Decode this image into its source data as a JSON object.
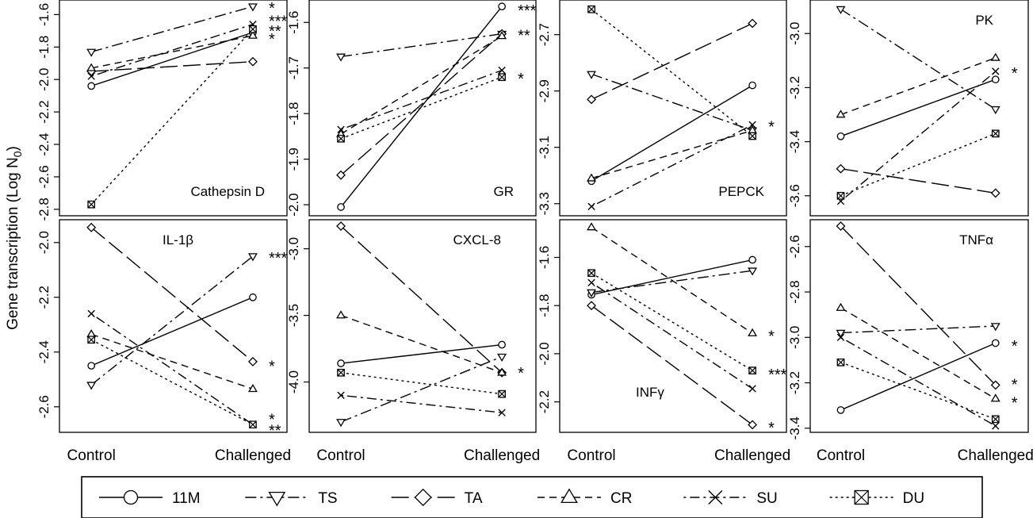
{
  "figure": {
    "ylabel": "Gene transcription (Log N",
    "ylabel_sub": "0",
    "ylabel_close": ")"
  },
  "legend": [
    {
      "name": "11M",
      "marker": "circle",
      "dash": "solid"
    },
    {
      "name": "TS",
      "marker": "triangle-down",
      "dash": "dash-dot"
    },
    {
      "name": "TA",
      "marker": "diamond",
      "dash": "long-dash"
    },
    {
      "name": "CR",
      "marker": "triangle-up",
      "dash": "dash"
    },
    {
      "name": "SU",
      "marker": "x",
      "dash": "dot-dash"
    },
    {
      "name": "DU",
      "marker": "boxed-x",
      "dash": "dot"
    }
  ],
  "chart_data": [
    {
      "type": "line",
      "title": "Cathepsin D",
      "title_pos": "bottom-right",
      "categories": [
        "Control",
        "Challenged"
      ],
      "ylim": [
        -2.8,
        -1.55
      ],
      "yticks": [
        "-1.6",
        "-1.8",
        "-2.0",
        "-2.2",
        "-2.4",
        "-2.6",
        "-2.8"
      ],
      "ytick_values": [
        -1.6,
        -1.8,
        -2.0,
        -2.2,
        -2.4,
        -2.6,
        -2.8
      ],
      "series": [
        {
          "name": "11M",
          "values": [
            -2.04,
            -1.71
          ]
        },
        {
          "name": "TS",
          "values": [
            -1.83,
            -1.55
          ]
        },
        {
          "name": "TA",
          "values": [
            -1.95,
            -1.89
          ]
        },
        {
          "name": "CR",
          "values": [
            -1.93,
            -1.73
          ]
        },
        {
          "name": "SU",
          "values": [
            -1.98,
            -1.66
          ]
        },
        {
          "name": "DU",
          "values": [
            -2.77,
            -1.69
          ]
        }
      ],
      "significance": [
        {
          "label": "*",
          "y": -1.55
        },
        {
          "label": "***",
          "y": -1.63
        },
        {
          "label": "**",
          "y": -1.69
        },
        {
          "label": "*",
          "y": -1.74
        }
      ]
    },
    {
      "type": "line",
      "title": "GR",
      "title_pos": "bottom-right",
      "categories": [
        "Control",
        "Challenged"
      ],
      "ylim": [
        -2.01,
        -1.565
      ],
      "yticks": [
        "-1.6",
        "-1.7",
        "-1.8",
        "-1.9",
        "-2.0"
      ],
      "ytick_values": [
        -1.6,
        -1.7,
        -1.8,
        -1.9,
        -2.0
      ],
      "series": [
        {
          "name": "11M",
          "values": [
            -2.005,
            -1.565
          ]
        },
        {
          "name": "TS",
          "values": [
            -1.675,
            -1.625
          ]
        },
        {
          "name": "TA",
          "values": [
            -1.935,
            -1.625
          ]
        },
        {
          "name": "CR",
          "values": [
            -1.845,
            -1.63
          ]
        },
        {
          "name": "SU",
          "values": [
            -1.835,
            -1.705
          ]
        },
        {
          "name": "DU",
          "values": [
            -1.855,
            -1.72
          ]
        }
      ],
      "significance": [
        {
          "label": "***",
          "y": -1.57
        },
        {
          "label": "**",
          "y": -1.625
        },
        {
          "label": "*",
          "y": -1.72
        }
      ]
    },
    {
      "type": "line",
      "title": "PEPCK",
      "title_pos": "bottom-right",
      "categories": [
        "Control",
        "Challenged"
      ],
      "ylim": [
        -3.32,
        -2.6
      ],
      "yticks": [
        "-2.7",
        "-2.9",
        "-3.1",
        "-3.3"
      ],
      "ytick_values": [
        -2.7,
        -2.9,
        -3.1,
        -3.3
      ],
      "series": [
        {
          "name": "11M",
          "values": [
            -3.22,
            -2.88
          ]
        },
        {
          "name": "TS",
          "values": [
            -2.84,
            -3.04
          ]
        },
        {
          "name": "TA",
          "values": [
            -2.93,
            -2.66
          ]
        },
        {
          "name": "CR",
          "values": [
            -3.21,
            -3.04
          ]
        },
        {
          "name": "SU",
          "values": [
            -3.31,
            -3.02
          ]
        },
        {
          "name": "DU",
          "values": [
            -2.61,
            -3.06
          ]
        }
      ],
      "significance": [
        {
          "label": "*",
          "y": -3.02
        }
      ]
    },
    {
      "type": "line",
      "title": "PK",
      "title_pos": "top-right",
      "categories": [
        "Control",
        "Challenged"
      ],
      "ylim": [
        -3.65,
        -2.9
      ],
      "yticks": [
        "-3.0",
        "-3.2",
        "-3.4",
        "-3.6"
      ],
      "ytick_values": [
        -3.0,
        -3.2,
        -3.4,
        -3.6
      ],
      "series": [
        {
          "name": "11M",
          "values": [
            -3.38,
            -3.17
          ]
        },
        {
          "name": "TS",
          "values": [
            -2.91,
            -3.28
          ]
        },
        {
          "name": "TA",
          "values": [
            -3.5,
            -3.59
          ]
        },
        {
          "name": "CR",
          "values": [
            -3.3,
            -3.09
          ]
        },
        {
          "name": "SU",
          "values": [
            -3.62,
            -3.14
          ]
        },
        {
          "name": "DU",
          "values": [
            -3.6,
            -3.37
          ]
        }
      ],
      "significance": [
        {
          "label": "*",
          "y": -3.14
        }
      ]
    },
    {
      "type": "line",
      "title": "IL-1β",
      "title_pos": "top-left",
      "categories": [
        "Control",
        "Challenged"
      ],
      "ylim": [
        -2.67,
        -1.94
      ],
      "yticks": [
        "-2.0",
        "-2.2",
        "-2.4",
        "-2.6"
      ],
      "ytick_values": [
        -2.0,
        -2.2,
        -2.4,
        -2.6
      ],
      "series": [
        {
          "name": "11M",
          "values": [
            -2.45,
            -2.2
          ]
        },
        {
          "name": "TS",
          "values": [
            -2.52,
            -2.05
          ]
        },
        {
          "name": "TA",
          "values": [
            -1.945,
            -2.435
          ]
        },
        {
          "name": "CR",
          "values": [
            -2.335,
            -2.535
          ]
        },
        {
          "name": "SU",
          "values": [
            -2.26,
            -2.665
          ]
        },
        {
          "name": "DU",
          "values": [
            -2.355,
            -2.665
          ]
        }
      ],
      "significance": [
        {
          "label": "***",
          "y": -2.05
        },
        {
          "label": "*",
          "y": -2.445
        },
        {
          "label": "*",
          "y": -2.64
        },
        {
          "label": "**",
          "y": -2.68
        }
      ]
    },
    {
      "type": "line",
      "title": "CXCL-8",
      "title_pos": "top-right",
      "categories": [
        "Control",
        "Challenged"
      ],
      "ylim": [
        -4.33,
        -2.83
      ],
      "yticks": [
        "-3.0",
        "-3.5",
        "-4.0"
      ],
      "ytick_values": [
        -3.0,
        -3.5,
        -4.0
      ],
      "series": [
        {
          "name": "11M",
          "values": [
            -3.86,
            -3.72
          ]
        },
        {
          "name": "TS",
          "values": [
            -4.3,
            -3.81
          ]
        },
        {
          "name": "TA",
          "values": [
            -2.83,
            -3.93
          ]
        },
        {
          "name": "CR",
          "values": [
            -3.5,
            -3.93
          ]
        },
        {
          "name": "SU",
          "values": [
            -4.1,
            -4.23
          ]
        },
        {
          "name": "DU",
          "values": [
            -3.93,
            -4.09
          ]
        }
      ],
      "significance": [
        {
          "label": "*",
          "y": -3.92
        }
      ]
    },
    {
      "type": "line",
      "title": "INFγ",
      "title_pos": "bottom-left",
      "categories": [
        "Control",
        "Challenged"
      ],
      "ylim": [
        -2.3,
        -1.47
      ],
      "yticks": [
        "-1.6",
        "-1.8",
        "-2.0",
        "-2.2"
      ],
      "ytick_values": [
        -1.6,
        -1.8,
        -2.0,
        -2.2
      ],
      "series": [
        {
          "name": "11M",
          "values": [
            -1.755,
            -1.61
          ]
        },
        {
          "name": "TS",
          "values": [
            -1.745,
            -1.655
          ]
        },
        {
          "name": "TA",
          "values": [
            -1.8,
            -2.295
          ]
        },
        {
          "name": "CR",
          "values": [
            -1.475,
            -1.915
          ]
        },
        {
          "name": "SU",
          "values": [
            -1.705,
            -2.145
          ]
        },
        {
          "name": "DU",
          "values": [
            -1.665,
            -2.07
          ]
        }
      ],
      "significance": [
        {
          "label": "*",
          "y": -1.92
        },
        {
          "label": "***",
          "y": -2.08
        },
        {
          "label": "*",
          "y": -2.3
        }
      ]
    },
    {
      "type": "line",
      "title": "TNFα",
      "title_pos": "top-right",
      "categories": [
        "Control",
        "Challenged"
      ],
      "ylim": [
        -3.39,
        -2.51
      ],
      "yticks": [
        "-2.6",
        "-2.8",
        "-3.0",
        "-3.2",
        "-3.4"
      ],
      "ytick_values": [
        -2.6,
        -2.8,
        -3.0,
        -3.2,
        -3.4
      ],
      "series": [
        {
          "name": "11M",
          "values": [
            -3.32,
            -3.025
          ]
        },
        {
          "name": "TS",
          "values": [
            -2.98,
            -2.95
          ]
        },
        {
          "name": "TA",
          "values": [
            -2.51,
            -3.21
          ]
        },
        {
          "name": "CR",
          "values": [
            -2.87,
            -3.27
          ]
        },
        {
          "name": "SU",
          "values": [
            -3.0,
            -3.39
          ]
        },
        {
          "name": "DU",
          "values": [
            -3.11,
            -3.36
          ]
        }
      ],
      "significance": [
        {
          "label": "*",
          "y": -3.03
        },
        {
          "label": "*",
          "y": -3.2
        },
        {
          "label": "*",
          "y": -3.28
        }
      ]
    }
  ]
}
